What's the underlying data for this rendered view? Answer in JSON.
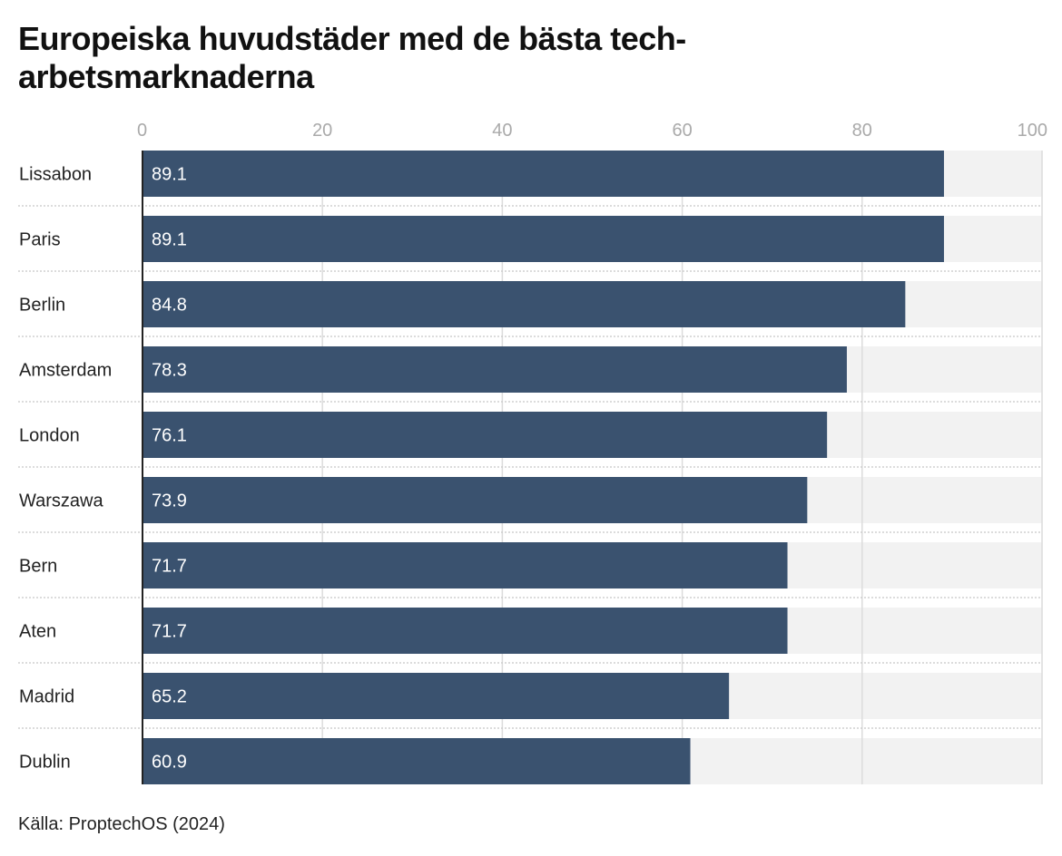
{
  "chart_data": {
    "type": "bar",
    "orientation": "horizontal",
    "title": "Europeiska huvudstäder med de bästa tech-arbetsmarknaderna",
    "categories": [
      "Lissabon",
      "Paris",
      "Berlin",
      "Amsterdam",
      "London",
      "Warszawa",
      "Bern",
      "Aten",
      "Madrid",
      "Dublin"
    ],
    "values": [
      89.1,
      89.1,
      84.8,
      78.3,
      76.1,
      73.9,
      71.7,
      71.7,
      65.2,
      60.9
    ],
    "xlim": [
      0,
      100
    ],
    "xticks": [
      "0",
      "20",
      "40",
      "60",
      "80",
      "100"
    ],
    "xtick_values": [
      0,
      20,
      40,
      60,
      80,
      100
    ],
    "grid": true,
    "bar_color": "#3a526f",
    "track_color": "#f2f2f2",
    "data_labels": true
  },
  "source": "Källa: ProptechOS (2024)"
}
